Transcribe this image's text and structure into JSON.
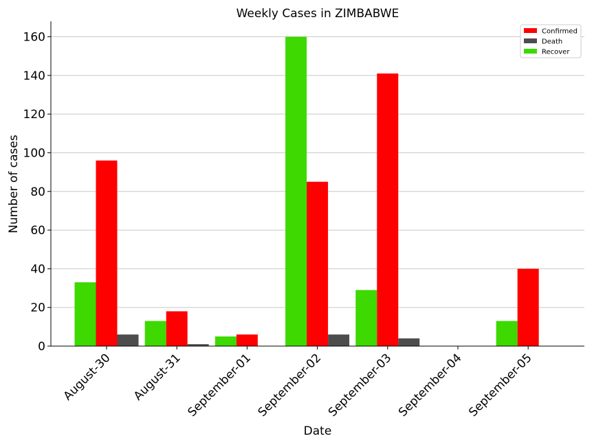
{
  "chart_data": {
    "type": "bar",
    "title": "Weekly Cases in ZIMBABWE",
    "xlabel": "Date",
    "ylabel": "Number of cases",
    "categories": [
      "August-30",
      "August-31",
      "September-01",
      "September-02",
      "September-03",
      "September-04",
      "September-05"
    ],
    "series": [
      {
        "name": "Recover",
        "color": "#3dd900",
        "values": [
          33,
          13,
          5,
          160,
          29,
          0,
          13
        ]
      },
      {
        "name": "Confirmed",
        "color": "#ff0000",
        "values": [
          96,
          18,
          6,
          85,
          141,
          0,
          40
        ]
      },
      {
        "name": "Death",
        "color": "#4d4d4d",
        "values": [
          6,
          1,
          0,
          6,
          4,
          0,
          0
        ]
      }
    ],
    "legend_order": [
      "Confirmed",
      "Death",
      "Recover"
    ],
    "ylim": [
      0,
      168
    ],
    "yticks": [
      0,
      20,
      40,
      60,
      80,
      100,
      120,
      140,
      160
    ],
    "grid": "horizontal",
    "legend_position": "top-right"
  }
}
